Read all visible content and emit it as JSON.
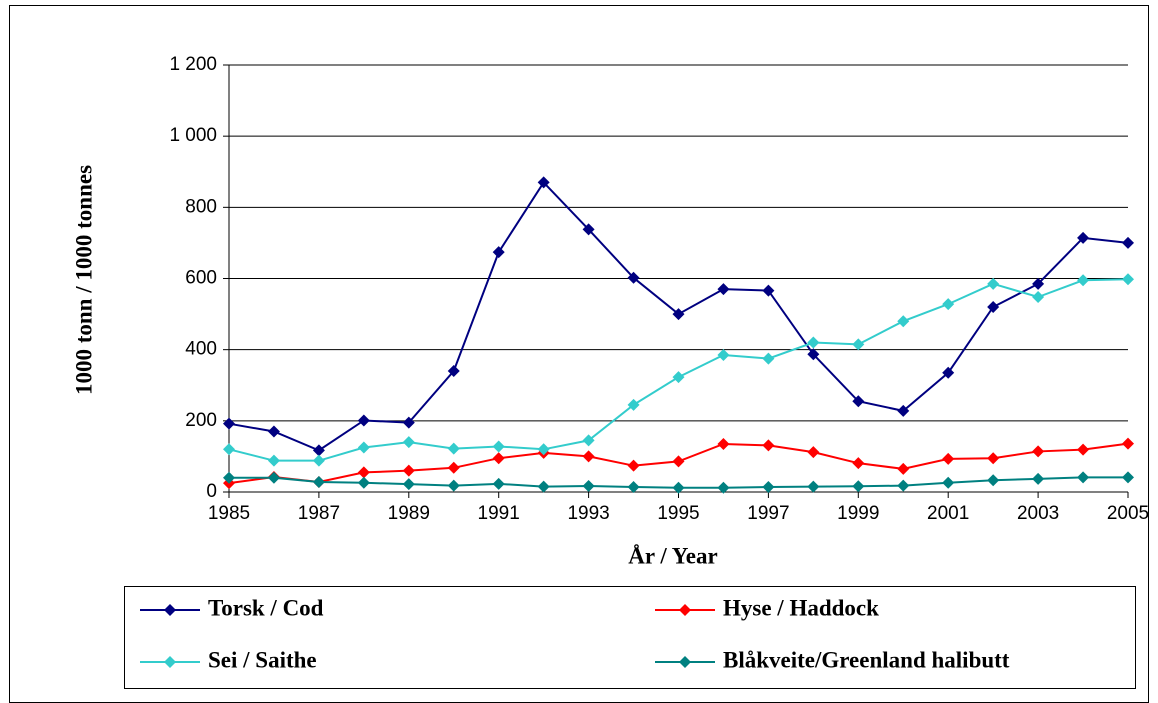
{
  "chart_data": {
    "type": "line",
    "x_label": "År / Year",
    "y_label": "1000 tonn / 1000 tonnes",
    "x": [
      1985,
      1986,
      1987,
      1988,
      1989,
      1990,
      1991,
      1992,
      1993,
      1994,
      1995,
      1996,
      1997,
      1998,
      1999,
      2000,
      2001,
      2002,
      2003,
      2004,
      2005
    ],
    "xlim": [
      1985,
      2005
    ],
    "xticks": [
      1985,
      1987,
      1989,
      1991,
      1993,
      1995,
      1997,
      1999,
      2001,
      2003,
      2005
    ],
    "ylim": [
      0,
      1200
    ],
    "yticks": [
      0,
      200,
      400,
      600,
      800,
      {
        "value": 1000,
        "label": "1 000"
      },
      {
        "value": 1200,
        "label": "1 200"
      }
    ],
    "grid": true,
    "series": [
      {
        "name": "Torsk / Cod",
        "color": "#000080",
        "values": [
          192,
          170,
          117,
          201,
          195,
          340,
          674,
          870,
          738,
          602,
          500,
          570,
          566,
          387,
          255,
          228,
          335,
          520,
          585,
          714,
          700
        ]
      },
      {
        "name": "Hyse / Haddock",
        "color": "#ff0000",
        "values": [
          25,
          42,
          28,
          55,
          60,
          68,
          95,
          110,
          100,
          74,
          86,
          135,
          131,
          112,
          81,
          65,
          93,
          95,
          114,
          119,
          136
        ]
      },
      {
        "name": "Sei / Saithe",
        "color": "#33cccc",
        "values": [
          120,
          88,
          88,
          125,
          140,
          122,
          128,
          120,
          145,
          245,
          323,
          385,
          375,
          420,
          415,
          480,
          528,
          585,
          548,
          595,
          598
        ]
      },
      {
        "name": "Blåkveite/Greenland halibutt",
        "color": "#008080",
        "values": [
          40,
          40,
          28,
          26,
          22,
          18,
          23,
          15,
          17,
          14,
          12,
          12,
          14,
          15,
          16,
          18,
          26,
          33,
          37,
          41,
          41
        ]
      }
    ]
  }
}
